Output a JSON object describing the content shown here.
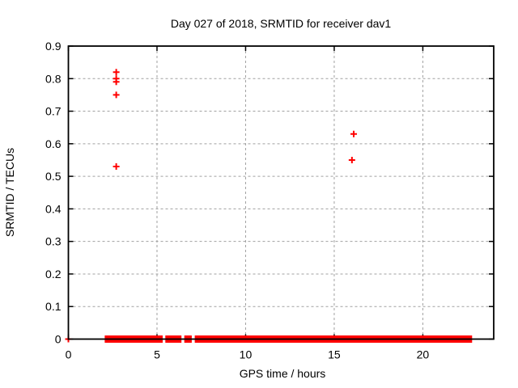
{
  "chart_data": {
    "type": "scatter",
    "title": "Day 027 of 2018, SRMTID for receiver dav1",
    "xlabel": "GPS time / hours",
    "ylabel": "SRMTID / TECUs",
    "xlim": [
      0,
      24
    ],
    "ylim": [
      0,
      0.9
    ],
    "xticks": [
      0,
      5,
      10,
      15,
      20
    ],
    "xtick_labels": [
      "0",
      "5",
      "10",
      "15",
      "20"
    ],
    "yticks": [
      0,
      0.1,
      0.2,
      0.3,
      0.4,
      0.5,
      0.6,
      0.7,
      0.8,
      0.9
    ],
    "ytick_labels": [
      "0",
      "0.1",
      "0.2",
      "0.3",
      "0.4",
      "0.5",
      "0.6",
      "0.7",
      "0.8",
      "0.9"
    ],
    "grid": true,
    "legend": "none",
    "marker": "plus",
    "colors": {
      "marker": "#ff0000",
      "grid": "#a0a0a0",
      "border": "#000000",
      "text": "#000000",
      "background": "#ffffff"
    },
    "points": [
      [
        0,
        0
      ],
      [
        2.7,
        0.82
      ],
      [
        2.7,
        0.8
      ],
      [
        2.7,
        0.79
      ],
      [
        2.7,
        0.75
      ],
      [
        2.7,
        0.53
      ],
      [
        16.1,
        0.63
      ],
      [
        16.0,
        0.55
      ]
    ],
    "zero_band_segments": [
      [
        2.05,
        5.32
      ],
      [
        5.47,
        6.38
      ],
      [
        6.54,
        6.96
      ],
      [
        7.13,
        22.78
      ]
    ],
    "zero_band_note": "dense run of y=0 samples rendered as a solid band of plus markers"
  }
}
